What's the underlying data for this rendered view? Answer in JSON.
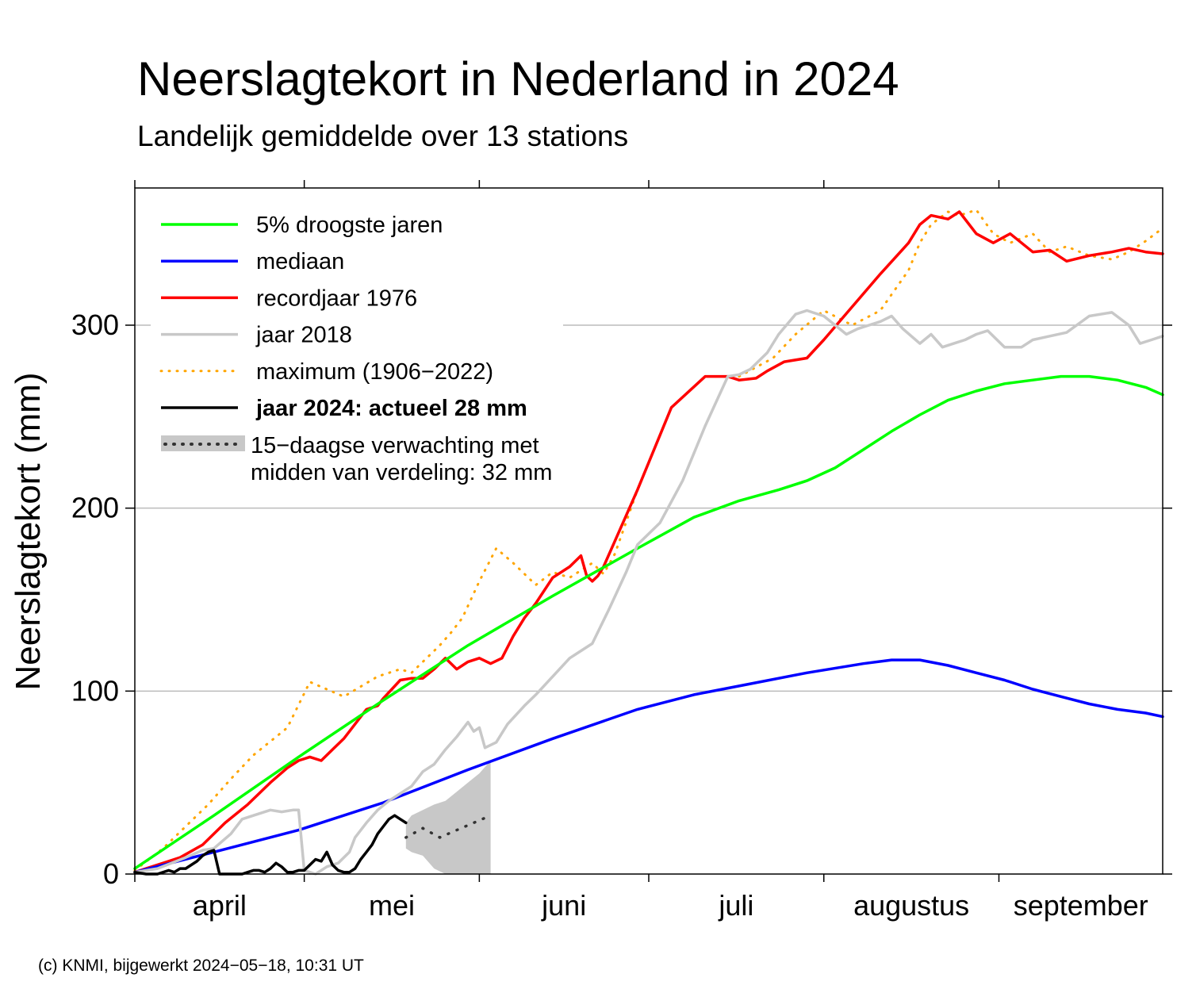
{
  "chart_data": {
    "type": "line",
    "title": "Neerslagtekort in Nederland in 2024",
    "subtitle": "Landelijk gemiddelde over 13 stations",
    "ylabel": "Neerslagtekort (mm)",
    "xlabel": "",
    "xlim": [
      1,
      183
    ],
    "ylim": [
      0,
      375
    ],
    "yticks": [
      0,
      100,
      200,
      300
    ],
    "ytick_labels": [
      "0",
      "100",
      "200",
      "300"
    ],
    "month_boundaries": [
      1,
      31,
      62,
      92,
      123,
      154,
      184
    ],
    "months": [
      {
        "label": "april",
        "center": 16
      },
      {
        "label": "mei",
        "center": 46.5
      },
      {
        "label": "juni",
        "center": 77
      },
      {
        "label": "juli",
        "center": 107.5
      },
      {
        "label": "augustus",
        "center": 138.5
      },
      {
        "label": "september",
        "center": 168.5
      }
    ],
    "series": [
      {
        "name": "maximum (1906-2022)",
        "color": "#ffa500",
        "style": "dotted",
        "x": [
          1,
          6,
          10,
          14,
          18,
          22,
          28,
          32,
          38,
          44,
          48,
          50,
          55,
          57,
          59,
          62,
          65,
          68,
          72,
          75,
          78,
          82,
          84,
          86,
          90,
          96,
          102,
          108,
          114,
          118,
          123,
          128,
          133,
          138,
          140,
          142,
          145,
          147,
          150,
          153,
          156,
          160,
          163,
          166,
          170,
          174,
          177,
          180,
          183
        ],
        "y": [
          2,
          14,
          26,
          38,
          52,
          65,
          80,
          105,
          97,
          108,
          112,
          110,
          125,
          132,
          140,
          160,
          178,
          170,
          158,
          165,
          162,
          170,
          164,
          175,
          210,
          255,
          272,
          272,
          282,
          295,
          308,
          300,
          308,
          330,
          345,
          355,
          362,
          360,
          363,
          350,
          345,
          350,
          340,
          343,
          338,
          336,
          340,
          346,
          353
        ]
      },
      {
        "name": "recordjaar 1976",
        "color": "#ff0000",
        "style": "solid",
        "x": [
          1,
          3,
          6,
          9,
          13,
          17,
          21,
          25,
          28,
          30,
          32,
          34,
          36,
          38,
          40,
          42,
          44,
          45,
          48,
          50,
          52,
          54,
          56,
          58,
          60,
          62,
          64,
          66,
          68,
          70,
          72,
          75,
          78,
          80,
          81,
          82,
          83,
          84,
          86,
          90,
          96,
          102,
          106,
          108,
          111,
          113,
          116,
          120,
          123,
          128,
          133,
          138,
          140,
          142,
          145,
          147,
          150,
          153,
          156,
          160,
          163,
          166,
          170,
          174,
          177,
          180,
          183
        ],
        "y": [
          1,
          3,
          6,
          9,
          16,
          28,
          38,
          50,
          58,
          62,
          64,
          62,
          68,
          74,
          82,
          90,
          92,
          96,
          106,
          107,
          107,
          112,
          118,
          112,
          116,
          118,
          115,
          118,
          130,
          140,
          148,
          162,
          168,
          174,
          163,
          160,
          163,
          168,
          182,
          210,
          255,
          272,
          272,
          270,
          271,
          275,
          280,
          282,
          292,
          310,
          328,
          345,
          355,
          360,
          358,
          362,
          350,
          345,
          350,
          340,
          341,
          335,
          338,
          340,
          342,
          340,
          339
        ]
      },
      {
        "name": "5% droogste jaren",
        "color": "#00ff00",
        "style": "solid",
        "x": [
          1,
          15,
          30,
          45,
          60,
          75,
          90,
          100,
          108,
          115,
          120,
          125,
          130,
          135,
          140,
          145,
          150,
          155,
          160,
          165,
          170,
          175,
          180,
          183
        ],
        "y": [
          3,
          32,
          64,
          95,
          125,
          152,
          178,
          195,
          204,
          210,
          215,
          222,
          232,
          242,
          251,
          259,
          264,
          268,
          270,
          272,
          272,
          270,
          266,
          262
        ]
      },
      {
        "name": "mediaan",
        "color": "#0000ff",
        "style": "solid",
        "x": [
          1,
          15,
          30,
          45,
          60,
          75,
          90,
          100,
          110,
          120,
          130,
          135,
          140,
          145,
          150,
          155,
          160,
          165,
          170,
          175,
          180,
          183
        ],
        "y": [
          1,
          12,
          24,
          39,
          57,
          74,
          90,
          98,
          104,
          110,
          115,
          117,
          117,
          114,
          110,
          106,
          101,
          97,
          93,
          90,
          88,
          86
        ]
      },
      {
        "name": "jaar 2018",
        "color": "#c8c8c8",
        "style": "solid",
        "x": [
          1,
          5,
          10,
          13,
          15,
          18,
          20,
          22,
          25,
          27,
          29,
          30,
          31,
          33,
          35,
          37,
          39,
          40,
          42,
          44,
          46,
          48,
          50,
          52,
          54,
          56,
          58,
          60,
          61,
          62,
          63,
          65,
          67,
          70,
          72,
          75,
          78,
          80,
          82,
          85,
          88,
          90,
          94,
          98,
          102,
          106,
          108,
          110,
          113,
          115,
          118,
          120,
          123,
          125,
          127,
          129,
          131,
          133,
          135,
          137,
          140,
          142,
          144,
          146,
          148,
          150,
          152,
          155,
          158,
          160,
          163,
          166,
          170,
          174,
          177,
          179,
          181,
          183
        ],
        "y": [
          1,
          3,
          9,
          13,
          14,
          22,
          30,
          32,
          35,
          34,
          35,
          35,
          2,
          0,
          4,
          6,
          12,
          20,
          28,
          35,
          40,
          44,
          48,
          56,
          60,
          68,
          75,
          83,
          78,
          80,
          69,
          72,
          82,
          92,
          98,
          108,
          118,
          122,
          126,
          145,
          165,
          180,
          192,
          215,
          245,
          272,
          273,
          276,
          285,
          295,
          306,
          308,
          305,
          300,
          295,
          298,
          300,
          302,
          305,
          298,
          290,
          295,
          288,
          290,
          292,
          295,
          297,
          288,
          288,
          292,
          294,
          296,
          305,
          307,
          300,
          290,
          292,
          294
        ]
      },
      {
        "name": "jaar 2024: actueel 28 mm",
        "color": "#000000",
        "style": "solid",
        "x": [
          1,
          3,
          5,
          7,
          8,
          9,
          10,
          11,
          12,
          13,
          14,
          15,
          16,
          17,
          18,
          19,
          20,
          21,
          22,
          23,
          24,
          25,
          26,
          27,
          28,
          29,
          30,
          31,
          32,
          33,
          34,
          35,
          36,
          37,
          38,
          39,
          40,
          41,
          42,
          43,
          44,
          45,
          46,
          47,
          48,
          49
        ],
        "y": [
          1,
          0,
          0,
          2,
          1,
          3,
          3,
          5,
          7,
          10,
          12,
          13,
          0,
          0,
          0,
          0,
          0,
          1,
          2,
          2,
          1,
          3,
          6,
          4,
          1,
          1,
          2,
          2,
          5,
          8,
          7,
          12,
          5,
          2,
          1,
          1,
          3,
          8,
          12,
          16,
          22,
          26,
          30,
          32,
          30,
          28
        ]
      }
    ],
    "forecast": {
      "x": [
        49,
        52,
        55,
        58,
        61,
        64,
        64
      ],
      "y": [
        20,
        25,
        20,
        24,
        28,
        32,
        32
      ],
      "band_x": [
        49,
        50,
        52,
        54,
        56,
        58,
        60,
        62,
        64
      ],
      "band_lower": [
        14,
        12,
        10,
        3,
        0,
        0,
        0,
        0,
        0
      ],
      "band_upper": [
        28,
        32,
        35,
        38,
        40,
        45,
        50,
        55,
        62
      ],
      "band_color": "#c8c8c8",
      "line_color": "#333333"
    }
  },
  "legend": {
    "items": [
      {
        "label": "5% droogste jaren",
        "color": "#00ff00",
        "style": "solid"
      },
      {
        "label": "mediaan",
        "color": "#0000ff",
        "style": "solid"
      },
      {
        "label": "recordjaar 1976",
        "color": "#ff0000",
        "style": "solid"
      },
      {
        "label": "jaar 2018",
        "color": "#c8c8c8",
        "style": "solid"
      },
      {
        "label": "maximum (1906−2022)",
        "color": "#ffa500",
        "style": "dotted"
      },
      {
        "label": "jaar 2024: actueel 28 mm",
        "color": "#000000",
        "style": "solid"
      }
    ],
    "forecast_line1": "15−daagse verwachting met",
    "forecast_line2": "midden van verdeling: 32 mm"
  },
  "footer": "(c) KNMI, bijgewerkt 2024−05−18, 10:31 UT"
}
